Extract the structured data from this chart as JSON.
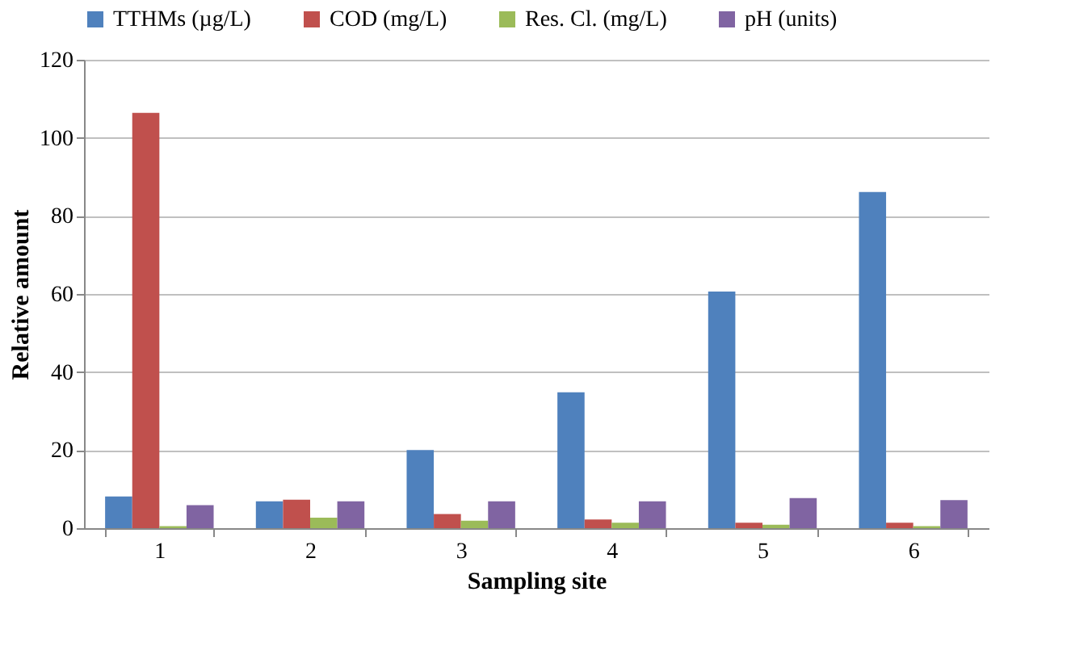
{
  "chart_data": {
    "type": "bar",
    "xlabel": "Sampling site",
    "ylabel": "Relative amount",
    "categories": [
      "1",
      "2",
      "3",
      "4",
      "5",
      "6"
    ],
    "series": [
      {
        "name": "TTHMs (µg/L)",
        "color": "#4f81bd",
        "values": [
          8.1,
          6.9,
          20,
          34.8,
          60.6,
          86.1
        ]
      },
      {
        "name": "COD (mg/L)",
        "color": "#c0504d",
        "values": [
          106.4,
          7.3,
          3.6,
          2.2,
          1.4,
          1.4
        ]
      },
      {
        "name": "Res. Cl. (mg/L)",
        "color": "#9bbb59",
        "values": [
          0.5,
          2.7,
          1.9,
          1.4,
          0.9,
          0.5
        ]
      },
      {
        "name": "pH (units)",
        "color": "#8064a2",
        "values": [
          5.9,
          6.9,
          6.9,
          6.9,
          7.7,
          7.2
        ]
      }
    ],
    "ylim": [
      0,
      120
    ],
    "yticks": [
      0,
      20,
      40,
      60,
      80,
      100,
      120
    ],
    "grid": "y",
    "legend": "top"
  }
}
